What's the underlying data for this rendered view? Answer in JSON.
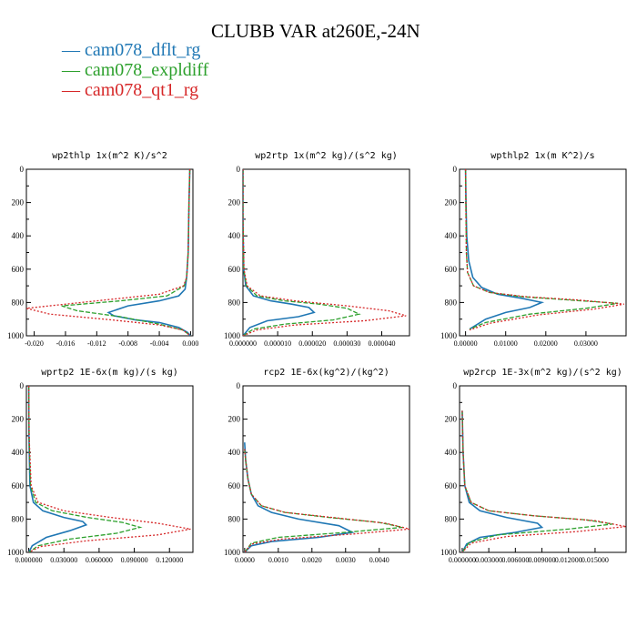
{
  "title": "CLUBB VAR at260E,-24N",
  "legend": [
    {
      "label": "cam078_dflt_rg",
      "color": "#1f77b4"
    },
    {
      "label": "cam078_expldiff",
      "color": "#2ca02c"
    },
    {
      "label": "cam078_qt1_rg",
      "color": "#d62728"
    }
  ],
  "chart_data": [
    {
      "type": "line",
      "title": "wp2thlp  1x(m^2 K)/s^2",
      "xlim": [
        -0.021,
        0.0003
      ],
      "ylim": [
        0,
        1000
      ],
      "y_inverted": true,
      "x_ticks": [
        -0.02,
        -0.016,
        -0.012,
        -0.008,
        -0.004,
        0.0
      ],
      "x_tick_labels": [
        "-0.020",
        "-0.016",
        "-0.012",
        "-0.008",
        "-0.004",
        "0.000"
      ],
      "y_ticks": [
        0,
        200,
        400,
        600,
        800,
        1000
      ],
      "y_tick_labels": [
        "0",
        "200",
        "400",
        "600",
        "800",
        "1000"
      ],
      "series": [
        {
          "name": "cam078_dflt_rg",
          "color": "#1f77b4",
          "dash": "",
          "x": [
            -0.0001,
            -0.0002,
            -0.0003,
            -0.0005,
            -0.0007,
            -0.0015,
            -0.004,
            -0.008,
            -0.0105,
            -0.0098,
            -0.007,
            -0.004,
            -0.0015,
            -0.0004,
            0
          ],
          "y": [
            0,
            200,
            500,
            650,
            720,
            760,
            790,
            820,
            860,
            880,
            905,
            920,
            950,
            980,
            1000
          ]
        },
        {
          "name": "cam078_expldiff",
          "color": "#2ca02c",
          "dash": "5,2",
          "x": [
            -0.0001,
            -0.0002,
            -0.0003,
            -0.0005,
            -0.0008,
            -0.003,
            -0.009,
            -0.0165,
            -0.0145,
            -0.009,
            -0.004,
            -0.001,
            0
          ],
          "y": [
            0,
            200,
            500,
            650,
            700,
            760,
            790,
            820,
            850,
            885,
            930,
            965,
            1000
          ]
        },
        {
          "name": "cam078_qt1_rg",
          "color": "#d62728",
          "dash": "2,2",
          "x": [
            -0.0001,
            -0.0002,
            -0.0003,
            -0.0005,
            -0.0009,
            -0.004,
            -0.012,
            -0.021,
            -0.018,
            -0.01,
            -0.004,
            -0.001,
            0
          ],
          "y": [
            0,
            200,
            500,
            650,
            700,
            750,
            790,
            835,
            870,
            905,
            935,
            965,
            1000
          ]
        }
      ]
    },
    {
      "type": "line",
      "title": "wp2rtp  1x(m^2 kg)/(s^2 kg)",
      "xlim": [
        0,
        4.8e-05
      ],
      "ylim": [
        0,
        1000
      ],
      "y_inverted": true,
      "x_ticks": [
        0,
        1e-05,
        2e-05,
        3e-05,
        4e-05
      ],
      "x_tick_labels": [
        "0.000000",
        "0.000010",
        "0.000020",
        "0.000030",
        "0.000040"
      ],
      "y_ticks": [
        0,
        200,
        400,
        600,
        800,
        1000
      ],
      "y_tick_labels": [
        "0",
        "200",
        "400",
        "600",
        "800",
        "1000"
      ],
      "series": [
        {
          "name": "cam078_dflt_rg",
          "color": "#1f77b4",
          "dash": "",
          "x": [
            0,
            0,
            2e-07,
            8e-07,
            3e-06,
            8e-06,
            1.4e-05,
            1.9e-05,
            2.05e-05,
            1.6e-05,
            7e-06,
            2e-06,
            0
          ],
          "y": [
            0,
            300,
            600,
            700,
            760,
            790,
            810,
            830,
            860,
            885,
            910,
            950,
            1000
          ]
        },
        {
          "name": "cam078_expldiff",
          "color": "#2ca02c",
          "dash": "5,2",
          "x": [
            0,
            0,
            2e-07,
            1e-06,
            4e-06,
            1.2e-05,
            2.2e-05,
            3e-05,
            3.35e-05,
            2.6e-05,
            1.2e-05,
            3e-06,
            0
          ],
          "y": [
            0,
            300,
            600,
            700,
            760,
            790,
            810,
            835,
            870,
            905,
            930,
            960,
            1000
          ]
        },
        {
          "name": "cam078_qt1_rg",
          "color": "#d62728",
          "dash": "2,2",
          "x": [
            0,
            0,
            3e-07,
            1.2e-06,
            5e-06,
            1.5e-05,
            3e-05,
            4.2e-05,
            4.7e-05,
            3.5e-05,
            1.5e-05,
            4e-06,
            0
          ],
          "y": [
            0,
            300,
            600,
            700,
            760,
            790,
            820,
            850,
            880,
            910,
            935,
            965,
            1000
          ]
        }
      ]
    },
    {
      "type": "line",
      "title": "wpthlp2  1x(m K^2)/s",
      "xlim": [
        -0.0015,
        0.04
      ],
      "ylim": [
        0,
        1000
      ],
      "y_inverted": true,
      "x_ticks": [
        0,
        0.01,
        0.02,
        0.03
      ],
      "x_tick_labels": [
        "0.00000",
        "0.01000",
        "0.02000",
        "0.03000"
      ],
      "y_ticks": [
        0,
        200,
        400,
        600,
        800,
        1000
      ],
      "y_tick_labels": [
        "0",
        "200",
        "400",
        "600",
        "800",
        "1000"
      ],
      "series": [
        {
          "name": "cam078_dflt_rg",
          "color": "#1f77b4",
          "dash": "",
          "x": [
            0,
            0.0001,
            0.0003,
            0.0008,
            0.0018,
            0.004,
            0.008,
            0.014,
            0.019,
            0.016,
            0.01,
            0.005,
            0.001
          ],
          "y": [
            0,
            200,
            400,
            550,
            650,
            710,
            750,
            775,
            800,
            830,
            860,
            900,
            960
          ]
        },
        {
          "name": "cam078_expldiff",
          "color": "#2ca02c",
          "dash": "5,2",
          "x": [
            0,
            0.0001,
            0.0002,
            0.0005,
            0.002,
            0.006,
            0.014,
            0.026,
            0.038,
            0.03,
            0.016,
            0.005,
            0.001
          ],
          "y": [
            0,
            300,
            500,
            620,
            700,
            740,
            765,
            785,
            805,
            835,
            870,
            920,
            960
          ]
        },
        {
          "name": "cam078_qt1_rg",
          "color": "#d62728",
          "dash": "2,2",
          "x": [
            0,
            0.0001,
            0.0002,
            0.0005,
            0.002,
            0.006,
            0.015,
            0.028,
            0.0395,
            0.032,
            0.018,
            0.006,
            0.001
          ],
          "y": [
            0,
            300,
            500,
            620,
            700,
            740,
            765,
            785,
            810,
            840,
            875,
            925,
            965
          ]
        }
      ]
    },
    {
      "type": "line",
      "title": "wprtp2  1E-6x(m kg)/(s kg)",
      "xlim": [
        -0.002,
        0.14
      ],
      "ylim": [
        0,
        1000
      ],
      "y_inverted": true,
      "x_ticks": [
        0,
        0.03,
        0.06,
        0.09,
        0.12
      ],
      "x_tick_labels": [
        "0.000000",
        "0.030000",
        "0.060000",
        "0.090000",
        "0.120000"
      ],
      "y_ticks": [
        0,
        200,
        400,
        600,
        800,
        1000
      ],
      "y_tick_labels": [
        "0",
        "200",
        "400",
        "600",
        "800",
        "1000"
      ],
      "series": [
        {
          "name": "cam078_dflt_rg",
          "color": "#1f77b4",
          "dash": "",
          "x": [
            0,
            0.0002,
            0.001,
            0.004,
            0.012,
            0.03,
            0.046,
            0.049,
            0.035,
            0.015,
            0.003,
            0
          ],
          "y": [
            0,
            300,
            600,
            700,
            750,
            790,
            815,
            835,
            870,
            910,
            960,
            1000
          ]
        },
        {
          "name": "cam078_expldiff",
          "color": "#2ca02c",
          "dash": "5,2",
          "x": [
            0,
            0.0003,
            0.0015,
            0.006,
            0.02,
            0.05,
            0.08,
            0.095,
            0.075,
            0.035,
            0.008,
            0
          ],
          "y": [
            0,
            300,
            600,
            700,
            750,
            790,
            820,
            850,
            885,
            920,
            960,
            1000
          ]
        },
        {
          "name": "cam078_qt1_rg",
          "color": "#d62728",
          "dash": "2,2",
          "x": [
            0,
            0.0003,
            0.002,
            0.008,
            0.03,
            0.07,
            0.11,
            0.138,
            0.11,
            0.05,
            0.01,
            0
          ],
          "y": [
            0,
            300,
            600,
            700,
            750,
            790,
            825,
            860,
            895,
            930,
            965,
            1000
          ]
        }
      ]
    },
    {
      "type": "line",
      "title": "rcp2  1E-6x(kg^2)/(kg^2)",
      "xlim": [
        -5e-05,
        0.0049
      ],
      "ylim": [
        0,
        1000
      ],
      "y_inverted": true,
      "x_ticks": [
        0,
        0.001,
        0.002,
        0.003,
        0.004
      ],
      "x_tick_labels": [
        "0.0000",
        "0.0010",
        "0.0020",
        "0.0030",
        "0.0040"
      ],
      "y_ticks": [
        0,
        200,
        400,
        600,
        800,
        1000
      ],
      "y_tick_labels": [
        "0",
        "200",
        "400",
        "600",
        "800",
        "1000"
      ],
      "series": [
        {
          "name": "cam078_dflt_rg",
          "color": "#1f77b4",
          "dash": "",
          "x": [
            0,
            3e-05,
            0.0001,
            0.0002,
            0.0004,
            0.0008,
            0.0016,
            0.0028,
            0.0032,
            0.0022,
            0.0008,
            0.0002,
            0
          ],
          "y": [
            340,
            450,
            560,
            650,
            720,
            760,
            800,
            840,
            880,
            910,
            935,
            960,
            1000
          ]
        },
        {
          "name": "cam078_expldiff",
          "color": "#2ca02c",
          "dash": "5,2",
          "x": [
            0,
            3e-05,
            0.0001,
            0.0002,
            0.0005,
            0.0012,
            0.0025,
            0.004,
            0.0047,
            0.003,
            0.001,
            0.0002,
            0
          ],
          "y": [
            380,
            450,
            560,
            650,
            720,
            760,
            790,
            820,
            850,
            880,
            910,
            945,
            1000
          ]
        },
        {
          "name": "cam078_qt1_rg",
          "color": "#d62728",
          "dash": "2,2",
          "x": [
            0,
            3e-05,
            0.0001,
            0.0002,
            0.0005,
            0.0012,
            0.0026,
            0.0042,
            0.0049,
            0.0032,
            0.0011,
            0.0002,
            0
          ],
          "y": [
            380,
            450,
            560,
            650,
            720,
            760,
            790,
            825,
            860,
            890,
            920,
            950,
            1000
          ]
        }
      ]
    },
    {
      "type": "line",
      "title": "wp2rcp  1E-3x(m^2 kg)/(s^2 kg)",
      "xlim": [
        -0.0003,
        0.0185
      ],
      "ylim": [
        0,
        1000
      ],
      "y_inverted": true,
      "x_ticks": [
        0,
        0.003,
        0.006,
        0.009,
        0.012,
        0.015
      ],
      "x_tick_labels": [
        "0.000000",
        "0.003000",
        "0.006000",
        "0.009000",
        "0.012000",
        "0.015000"
      ],
      "y_ticks": [
        0,
        200,
        400,
        600,
        800,
        1000
      ],
      "y_tick_labels": [
        "0",
        "200",
        "400",
        "600",
        "800",
        "1000"
      ],
      "series": [
        {
          "name": "cam078_dflt_rg",
          "color": "#1f77b4",
          "dash": "",
          "x": [
            0,
            0.0001,
            0.0003,
            0.0008,
            0.002,
            0.005,
            0.0085,
            0.009,
            0.006,
            0.002,
            0.0005,
            0
          ],
          "y": [
            150,
            400,
            600,
            700,
            750,
            790,
            825,
            850,
            880,
            910,
            950,
            1000
          ]
        },
        {
          "name": "cam078_expldiff",
          "color": "#2ca02c",
          "dash": "5,2",
          "x": [
            0,
            0.0001,
            0.0003,
            0.001,
            0.003,
            0.008,
            0.014,
            0.017,
            0.012,
            0.004,
            0.0008,
            0
          ],
          "y": [
            150,
            400,
            600,
            700,
            750,
            780,
            805,
            830,
            860,
            895,
            940,
            1000
          ]
        },
        {
          "name": "cam078_qt1_rg",
          "color": "#d62728",
          "dash": "2,2",
          "x": [
            0,
            0.0001,
            0.0003,
            0.001,
            0.003,
            0.008,
            0.015,
            0.0185,
            0.013,
            0.005,
            0.001,
            0
          ],
          "y": [
            150,
            400,
            600,
            700,
            750,
            780,
            810,
            845,
            875,
            905,
            945,
            1000
          ]
        }
      ]
    }
  ]
}
